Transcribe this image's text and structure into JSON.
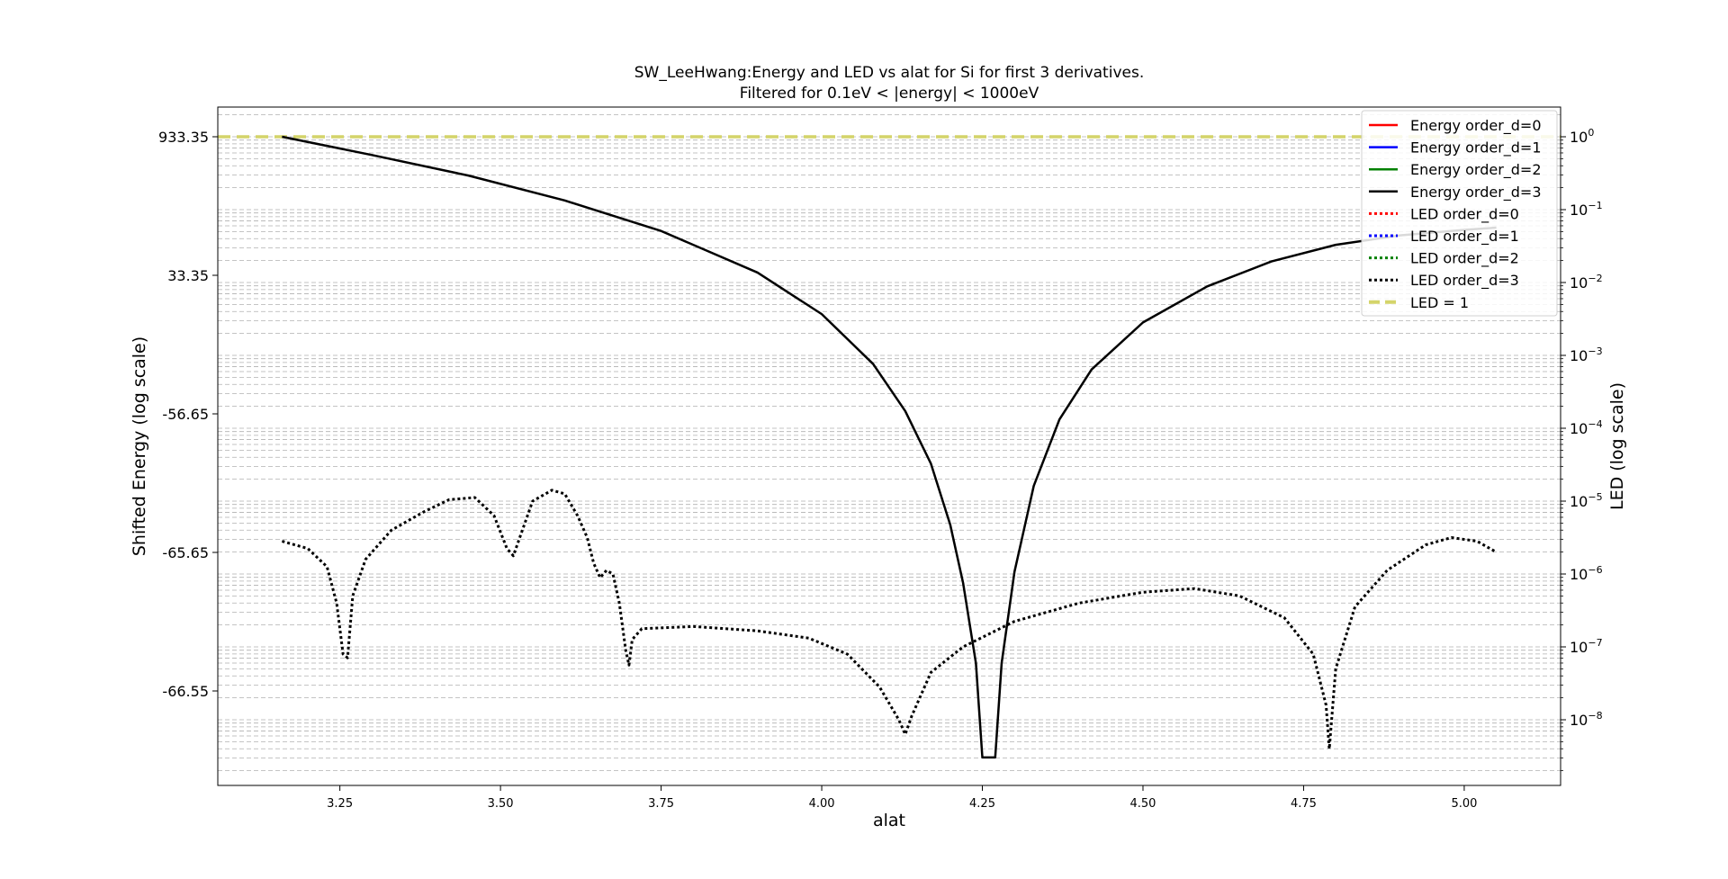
{
  "chart_data": {
    "type": "line",
    "title": "SW_LeeHwang:Energy and LED vs alat for Si for first 3 derivatives.",
    "subtitle": "Filtered for 0.1eV < |energy| < 1000eV",
    "xlabel": "alat",
    "ylabel": "Shifted Energy (log scale)",
    "y2label": "LED (log scale)",
    "xlim": [
      3.06,
      5.15
    ],
    "x_ticks": [
      "3.25",
      "3.50",
      "3.75",
      "4.00",
      "4.25",
      "4.50",
      "4.75",
      "5.00"
    ],
    "y_ticks": [
      "933.35",
      "33.35",
      "-56.65",
      "-65.65",
      "-66.55"
    ],
    "y2_ticks": [
      "10^0",
      "10^-1",
      "10^-2",
      "10^-3",
      "10^-4",
      "10^-5",
      "10^-6",
      "10^-7",
      "10^-8"
    ],
    "y2_scale": "log",
    "grid": "horizontal dashed, major and minor",
    "legend_position": "top-right",
    "colors": {
      "d0": "#ff0000",
      "d1": "#0000ff",
      "d2": "#008000",
      "d3": "#000000",
      "ref": "#d4d46a"
    },
    "legend": [
      {
        "label": "Energy order_d=0",
        "color": "#ff0000",
        "style": "solid"
      },
      {
        "label": "Energy order_d=1",
        "color": "#0000ff",
        "style": "solid"
      },
      {
        "label": "Energy order_d=2",
        "color": "#008000",
        "style": "solid"
      },
      {
        "label": "Energy order_d=3",
        "color": "#000000",
        "style": "solid"
      },
      {
        "label": "LED order_d=0",
        "color": "#ff0000",
        "style": "dotted"
      },
      {
        "label": "LED order_d=1",
        "color": "#0000ff",
        "style": "dotted"
      },
      {
        "label": "LED order_d=2",
        "color": "#008000",
        "style": "dotted"
      },
      {
        "label": "LED order_d=3",
        "color": "#000000",
        "style": "dotted"
      },
      {
        "label": "LED = 1",
        "color": "#d4d46a",
        "style": "dashed"
      }
    ],
    "energy_order_d3": {
      "x": [
        3.16,
        3.3,
        3.45,
        3.6,
        3.75,
        3.9,
        4.0,
        4.08,
        4.13,
        4.17,
        4.2,
        4.22,
        4.24,
        4.25,
        4.27,
        4.28,
        4.3,
        4.33,
        4.37,
        4.42,
        4.5,
        4.6,
        4.7,
        4.8,
        4.9,
        5.0,
        5.05
      ],
      "y_axis_pos": [
        1.0,
        0.967,
        0.93,
        0.885,
        0.83,
        0.755,
        0.68,
        0.59,
        0.505,
        0.41,
        0.3,
        0.195,
        0.05,
        -0.12,
        -0.12,
        0.05,
        0.215,
        0.37,
        0.49,
        0.58,
        0.665,
        0.73,
        0.775,
        0.805,
        0.822,
        0.832,
        0.836
      ]
    },
    "led_order_d3": {
      "x": [
        3.16,
        3.2,
        3.23,
        3.245,
        3.255,
        3.262,
        3.27,
        3.29,
        3.33,
        3.38,
        3.42,
        3.46,
        3.49,
        3.51,
        3.52,
        3.53,
        3.55,
        3.58,
        3.6,
        3.62,
        3.635,
        3.645,
        3.655,
        3.665,
        3.675,
        3.685,
        3.695,
        3.7,
        3.705,
        3.72,
        3.8,
        3.9,
        3.98,
        4.04,
        4.09,
        4.12,
        4.13,
        4.14,
        4.17,
        4.22,
        4.3,
        4.4,
        4.5,
        4.58,
        4.65,
        4.72,
        4.765,
        4.785,
        4.79,
        4.8,
        4.83,
        4.88,
        4.94,
        4.98,
        5.02,
        5.05
      ],
      "log10_led": [
        -5.55,
        -5.65,
        -5.9,
        -6.4,
        -7.1,
        -7.15,
        -6.3,
        -5.8,
        -5.4,
        -5.15,
        -4.98,
        -4.95,
        -5.2,
        -5.65,
        -5.75,
        -5.5,
        -5.0,
        -4.85,
        -4.9,
        -5.2,
        -5.5,
        -5.85,
        -6.05,
        -5.95,
        -6.0,
        -6.4,
        -7.05,
        -7.25,
        -6.9,
        -6.75,
        -6.72,
        -6.78,
        -6.88,
        -7.1,
        -7.55,
        -8.0,
        -8.2,
        -7.95,
        -7.35,
        -7.0,
        -6.65,
        -6.4,
        -6.25,
        -6.2,
        -6.3,
        -6.6,
        -7.1,
        -7.8,
        -8.4,
        -7.3,
        -6.45,
        -5.95,
        -5.6,
        -5.5,
        -5.55,
        -5.7
      ]
    },
    "led_equals_one": {
      "x": [
        3.06,
        5.15
      ],
      "log10_led": [
        0,
        0
      ]
    }
  }
}
